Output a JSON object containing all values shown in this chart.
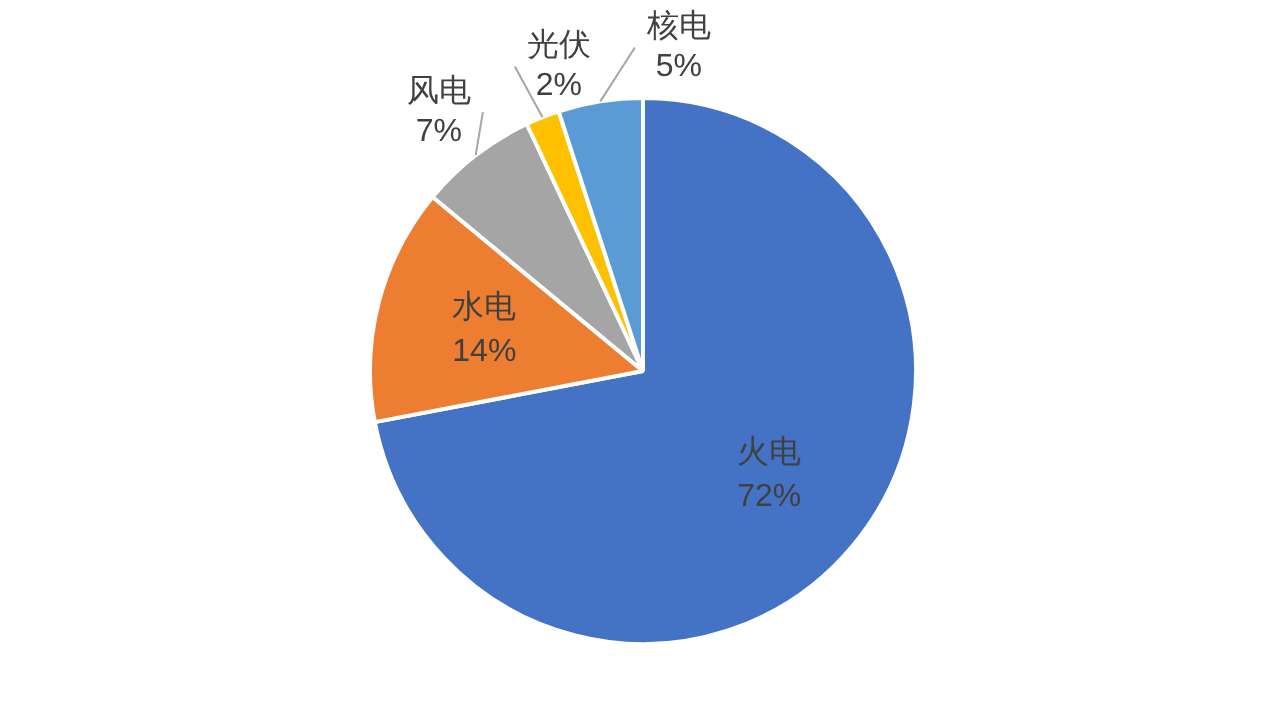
{
  "chart_data": {
    "type": "pie",
    "categories": [
      "火电",
      "水电",
      "风电",
      "光伏",
      "核电"
    ],
    "values": [
      72,
      14,
      7,
      2,
      5
    ],
    "colors": [
      "#4472c4",
      "#ed7d31",
      "#a5a5a5",
      "#ffc000",
      "#5b9bd5"
    ],
    "value_labels": [
      "72%",
      "14%",
      "7%",
      "2%",
      "5%"
    ],
    "legend": false
  }
}
